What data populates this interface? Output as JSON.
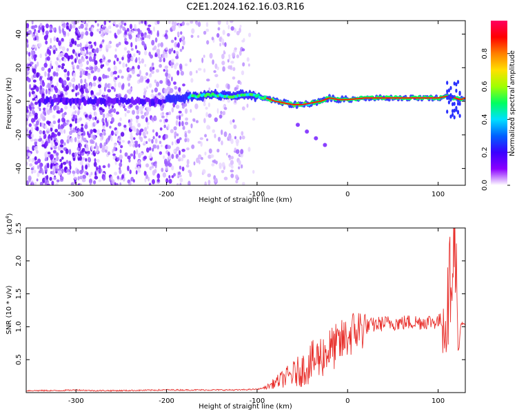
{
  "title": "C2E1.2024.162.16.03.R16",
  "chart_data": [
    {
      "type": "heatmap",
      "xlabel": "Height of straight line (km)",
      "ylabel": "Frequency (Hz)",
      "xlim": [
        -355,
        130
      ],
      "ylim": [
        -50,
        48
      ],
      "xticks": [
        -300,
        -200,
        -100,
        0,
        100
      ],
      "yticks": [
        -40,
        -20,
        0,
        20,
        40
      ],
      "colorbar": {
        "label": "Normalized spectral amplitude",
        "range": [
          0,
          1
        ],
        "ticks": [
          "0.0",
          "0.2",
          "0.4",
          "0.6",
          "0.8"
        ],
        "colors": [
          "#ffffff",
          "#8a00ff",
          "#3a00ff",
          "#0060ff",
          "#00e0ff",
          "#00ff60",
          "#a0ff00",
          "#ffe000",
          "#ff8000",
          "#ff0000",
          "#ff0060"
        ]
      },
      "ridge": {
        "x": [
          -200,
          -170,
          -150,
          -130,
          -110,
          -100,
          -90,
          -80,
          -70,
          -60,
          -50,
          -40,
          -30,
          -20,
          -10,
          0,
          20,
          50,
          80,
          100,
          110,
          118,
          125,
          130
        ],
        "y": [
          1,
          3,
          4,
          3,
          4,
          3,
          2,
          0,
          -1,
          -2,
          -2,
          -1,
          0,
          2,
          1,
          1,
          2,
          2,
          2,
          2,
          3,
          2,
          1,
          2
        ]
      },
      "tail": {
        "x": [
          -55,
          -45,
          -35,
          -25
        ],
        "y": [
          -14,
          -18,
          -22,
          -26
        ]
      }
    },
    {
      "type": "line",
      "xlabel": "Height of straight line (km)",
      "ylabel": "SNR (10 * v/v)",
      "y_multiplier": "(x10",
      "y_exponent": "4",
      "y_multiplier_close": ")",
      "xlim": [
        -355,
        130
      ],
      "ylim": [
        0,
        2.5
      ],
      "xticks": [
        -300,
        -200,
        -100,
        0,
        100
      ],
      "yticks": [
        "0.5",
        "1.0",
        "1.5",
        "2.0",
        "2.5"
      ],
      "color": "#e8302c",
      "series": [
        {
          "x": [
            -355,
            -320,
            -300,
            -280,
            -250,
            -200,
            -150,
            -120,
            -100,
            -90,
            -80,
            -70,
            -60,
            -50,
            -40,
            -30,
            -20,
            -10,
            0,
            10,
            20,
            30,
            40,
            50,
            60,
            70,
            80,
            90,
            100,
            105,
            110,
            112,
            115,
            118,
            120,
            122,
            125,
            130
          ],
          "y": [
            0.03,
            0.03,
            0.04,
            0.03,
            0.03,
            0.04,
            0.04,
            0.04,
            0.05,
            0.08,
            0.15,
            0.22,
            0.28,
            0.35,
            0.45,
            0.55,
            0.65,
            0.72,
            0.85,
            0.95,
            1.0,
            1.03,
            1.05,
            1.06,
            1.06,
            1.07,
            1.07,
            1.08,
            1.08,
            1.1,
            1.15,
            1.6,
            1.9,
            2.5,
            1.9,
            0.4,
            1.05,
            1.02
          ]
        }
      ]
    }
  ]
}
